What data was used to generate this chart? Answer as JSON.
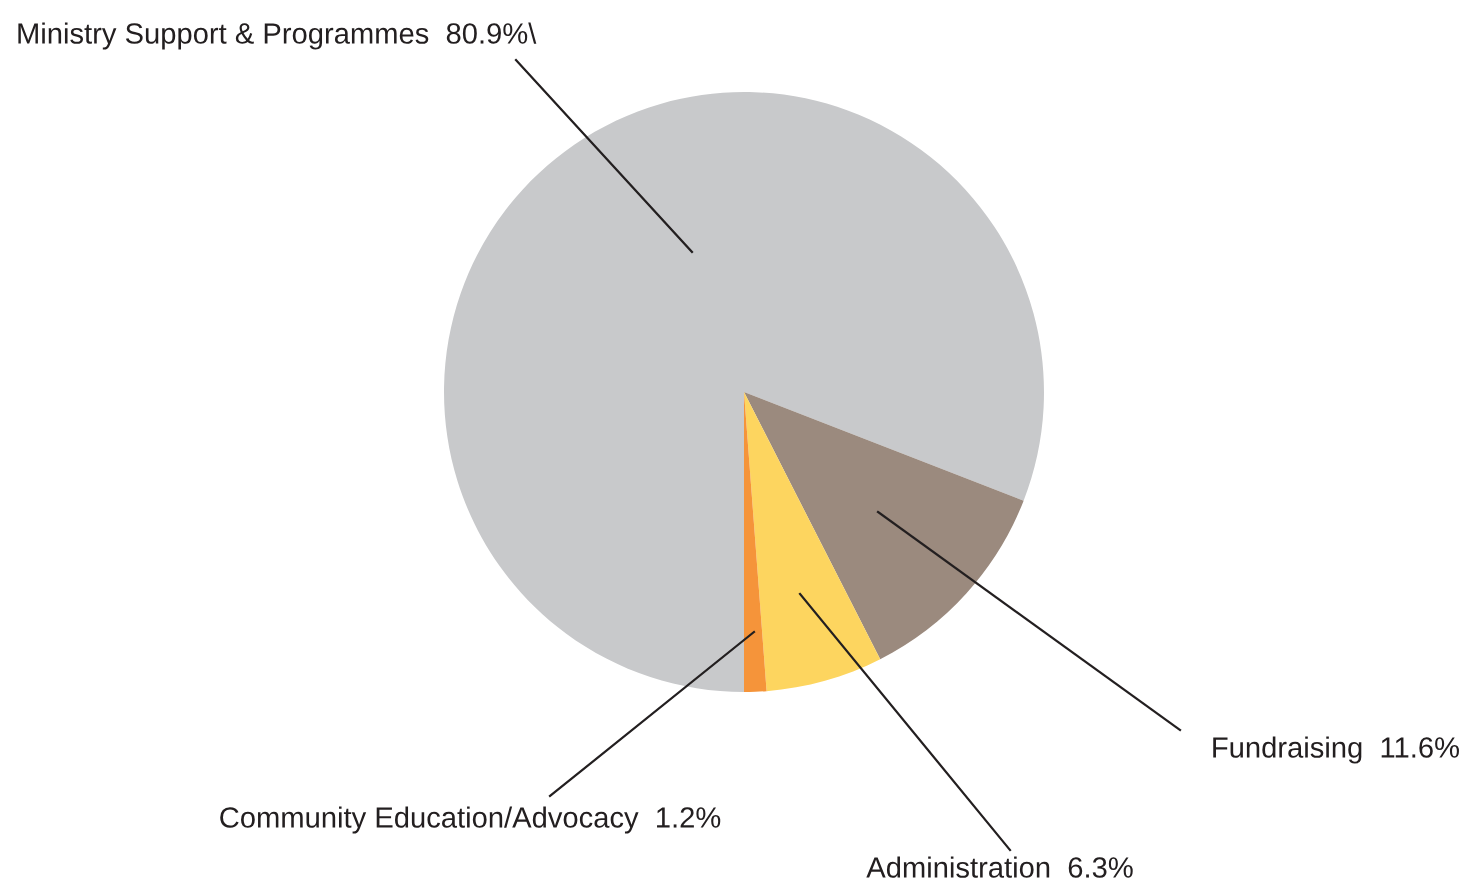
{
  "chart_data": {
    "type": "pie",
    "categories": [
      "Ministry Support & Programmes",
      "Fundraising",
      "Administration",
      "Community Education/Advocacy"
    ],
    "values": [
      80.9,
      11.6,
      6.3,
      1.2
    ],
    "value_labels": [
      "80.9%\\",
      "11.6%",
      "6.3%",
      "1.2%"
    ],
    "colors": [
      "#c8c9cb",
      "#9b8a7e",
      "#fdd55f",
      "#f5943a"
    ],
    "legend": false
  }
}
